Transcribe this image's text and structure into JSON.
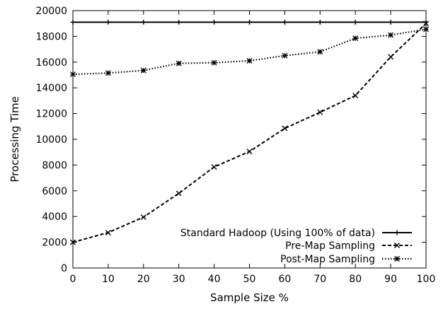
{
  "chart_data": {
    "type": "line",
    "xlabel": "Sample Size %",
    "ylabel": "Processing Time",
    "xlim": [
      0,
      100
    ],
    "ylim": [
      0,
      20000
    ],
    "x_ticks": [
      0,
      10,
      20,
      30,
      40,
      50,
      60,
      70,
      80,
      90,
      100
    ],
    "y_ticks": [
      0,
      2000,
      4000,
      6000,
      8000,
      10000,
      12000,
      14000,
      16000,
      18000,
      20000
    ],
    "grid": false,
    "legend_position": "bottom-right",
    "series": [
      {
        "name": "Standard Hadoop (Using 100% of data)",
        "style": "solid",
        "marker": "plus",
        "x": [
          0,
          10,
          20,
          30,
          40,
          50,
          60,
          70,
          80,
          90,
          100
        ],
        "y": [
          19100,
          19100,
          19100,
          19100,
          19100,
          19100,
          19100,
          19100,
          19100,
          19100,
          19100
        ]
      },
      {
        "name": "Pre-Map Sampling",
        "style": "dashed",
        "marker": "x",
        "x": [
          0,
          10,
          20,
          30,
          40,
          50,
          60,
          70,
          80,
          90,
          100
        ],
        "y": [
          2000,
          2750,
          3950,
          5800,
          7850,
          9050,
          10850,
          12100,
          13400,
          16400,
          19000
        ]
      },
      {
        "name": "Post-Map Sampling",
        "style": "dotted",
        "marker": "star",
        "x": [
          0,
          10,
          20,
          30,
          40,
          50,
          60,
          70,
          80,
          90,
          100
        ],
        "y": [
          15050,
          15150,
          15350,
          15900,
          15950,
          16100,
          16500,
          16800,
          17850,
          18100,
          18550
        ]
      }
    ]
  }
}
